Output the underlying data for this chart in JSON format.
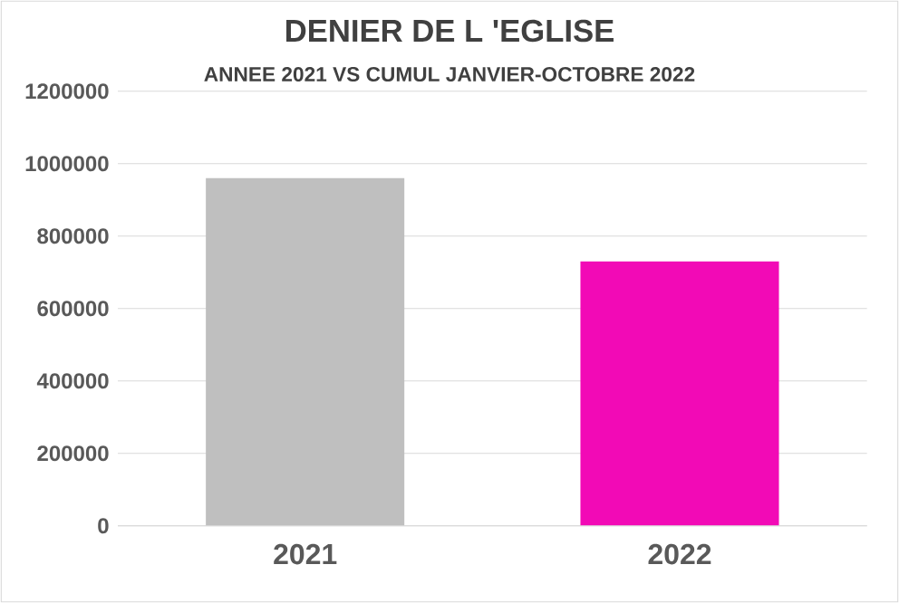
{
  "chart_data": {
    "type": "bar",
    "title": "DENIER DE L 'EGLISE",
    "subtitle": "ANNEE 2021 VS CUMUL JANVIER-OCTOBRE 2022",
    "categories": [
      "2021",
      "2022"
    ],
    "values": [
      960000,
      730000
    ],
    "colors": [
      "#bfbfbf",
      "#f20ab6"
    ],
    "ylim": [
      0,
      1200000
    ],
    "yticks": [
      0,
      200000,
      400000,
      600000,
      800000,
      1000000,
      1200000
    ],
    "grid": "y"
  }
}
